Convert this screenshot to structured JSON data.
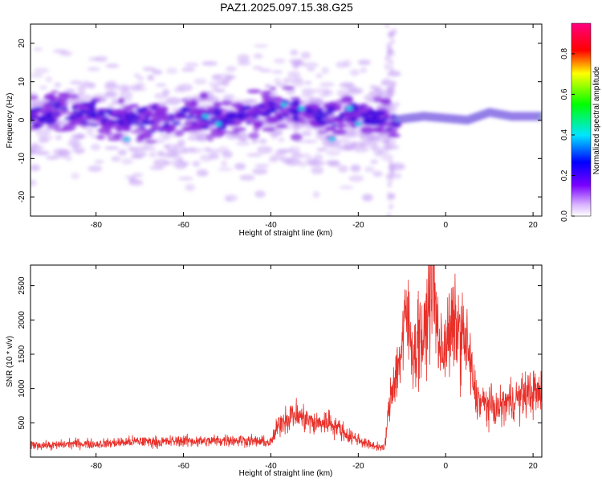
{
  "title": "PAZ1.2025.097.15.38.G25",
  "colors": {
    "snr_line": "#e8302a",
    "frame": "#000000"
  },
  "chart_data": [
    {
      "type": "heatmap",
      "xlabel": "Height of straight line (km)",
      "ylabel": "Frequency (Hz)",
      "xlim": [
        -95,
        22
      ],
      "ylim": [
        -25,
        25
      ],
      "x_ticks": [
        -80,
        -60,
        -40,
        -20,
        0,
        20
      ],
      "y_ticks": [
        -20,
        -10,
        0,
        10,
        20
      ],
      "colorbar": {
        "label": "Normalized spectral amplitude",
        "range": [
          0,
          0.95
        ],
        "ticks": [
          0.0,
          0.2,
          0.4,
          0.6,
          0.8
        ],
        "colormap": "rainbow (white → violet → blue → cyan → green → yellow → red → magenta)"
      },
      "ridge": [
        {
          "x": -90,
          "y": 3
        },
        {
          "x": -80,
          "y": 1
        },
        {
          "x": -70,
          "y": 0
        },
        {
          "x": -60,
          "y": 1
        },
        {
          "x": -50,
          "y": 0
        },
        {
          "x": -40,
          "y": 3
        },
        {
          "x": -30,
          "y": 1
        },
        {
          "x": -20,
          "y": 2
        },
        {
          "x": -12,
          "y": 0
        },
        {
          "x": -5,
          "y": 1
        },
        {
          "x": 0,
          "y": 0.5
        },
        {
          "x": 5,
          "y": 0
        },
        {
          "x": 10,
          "y": 2
        },
        {
          "x": 15,
          "y": 1
        },
        {
          "x": 22,
          "y": 1
        }
      ]
    },
    {
      "type": "line",
      "xlabel": "Height of straight line (km)",
      "ylabel": "SNR (10 * v/v)",
      "xlim": [
        -95,
        22
      ],
      "ylim": [
        0,
        2800
      ],
      "x_ticks": [
        -80,
        -60,
        -40,
        -20,
        0,
        20
      ],
      "y_ticks": [
        500,
        1000,
        1500,
        2000,
        2500
      ],
      "series": [
        {
          "x": [
            -95,
            -90,
            -85,
            -80,
            -75,
            -70,
            -65,
            -60,
            -55,
            -50,
            -45,
            -40,
            -38,
            -35,
            -32,
            -30,
            -27,
            -25,
            -22,
            -20,
            -18,
            -16,
            -14,
            -13,
            -12,
            -11,
            -10,
            -9,
            -8,
            -7,
            -6,
            -5,
            -4,
            -3,
            -2,
            -1,
            0,
            1,
            2,
            3,
            4,
            5,
            6,
            7,
            8,
            10,
            12,
            14,
            16,
            18,
            20,
            22
          ],
          "y": [
            180,
            170,
            200,
            190,
            210,
            230,
            220,
            240,
            230,
            250,
            240,
            210,
            500,
            620,
            560,
            480,
            520,
            450,
            300,
            260,
            190,
            160,
            130,
            700,
            1100,
            1300,
            1600,
            2100,
            1700,
            1500,
            1900,
            1600,
            2300,
            2700,
            1900,
            1500,
            1700,
            1800,
            1900,
            1850,
            1750,
            1600,
            1200,
            850,
            800,
            750,
            700,
            800,
            850,
            900,
            950,
            900
          ]
        }
      ]
    }
  ]
}
